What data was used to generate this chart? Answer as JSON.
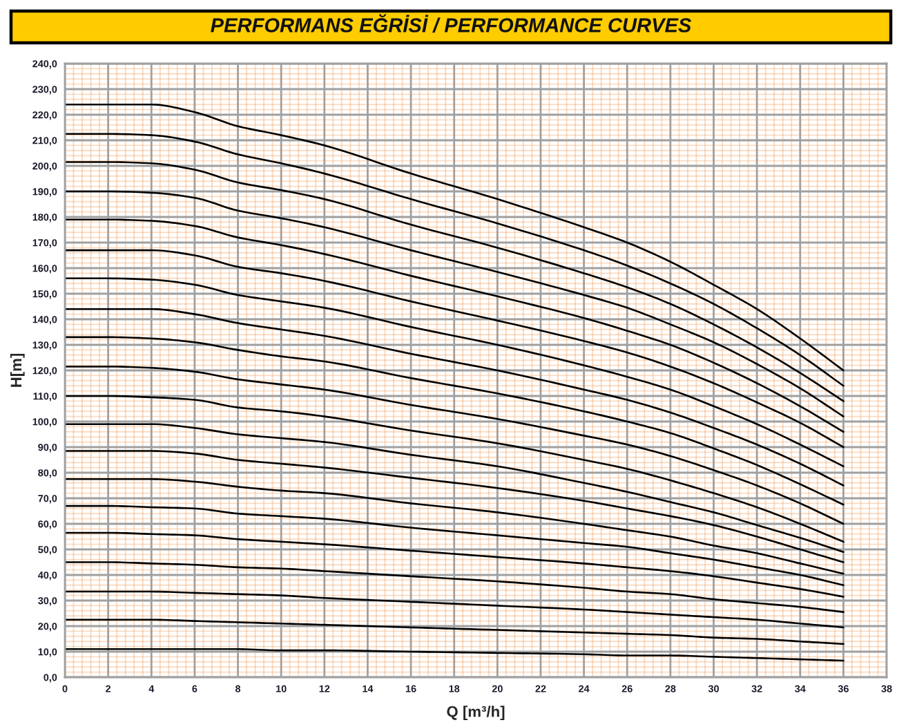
{
  "chart_data": {
    "type": "line",
    "title": "PERFORMANS EĞRİSİ / PERFORMANCE CURVES",
    "xlabel": "Q [m³/h]",
    "ylabel": "H[m]",
    "x": [
      0,
      2,
      4,
      6,
      8,
      10,
      12,
      16,
      20,
      24,
      26,
      28,
      30,
      32,
      34,
      36
    ],
    "xlim": [
      0,
      38
    ],
    "ylim": [
      0,
      240
    ],
    "xticks": [
      0,
      {
        "value": 0.4,
        "label": null
      },
      {
        "value": 0.8,
        "label": null
      },
      {
        "value": 1.2,
        "label": null
      },
      {
        "value": 1.6,
        "label": null
      },
      2,
      {
        "value": 2.4,
        "label": null
      },
      {
        "value": 2.8,
        "label": null
      },
      {
        "value": 3.2,
        "label": null
      },
      {
        "value": 3.6,
        "label": null
      },
      4,
      {
        "value": 4.4,
        "label": null
      },
      {
        "value": 4.8,
        "label": null
      },
      {
        "value": 5.2,
        "label": null
      },
      {
        "value": 5.6,
        "label": null
      },
      6,
      {
        "value": 6.4,
        "label": null
      },
      {
        "value": 6.8,
        "label": null
      },
      {
        "value": 7.2,
        "label": null
      },
      {
        "value": 7.6,
        "label": null
      },
      8,
      {
        "value": 8.4,
        "label": null
      },
      {
        "value": 8.8,
        "label": null
      },
      {
        "value": 9.2,
        "label": null
      },
      {
        "value": 9.6,
        "label": null
      },
      10,
      {
        "value": 10.4,
        "label": null
      },
      {
        "value": 10.8,
        "label": null
      },
      {
        "value": 11.2,
        "label": null
      },
      {
        "value": 11.6,
        "label": null
      },
      12,
      {
        "value": 12.4,
        "label": null
      },
      {
        "value": 12.8,
        "label": null
      },
      {
        "value": 13.2,
        "label": null
      },
      {
        "value": 13.6,
        "label": null
      },
      14,
      {
        "value": 14.4,
        "label": null
      },
      {
        "value": 14.8,
        "label": null
      },
      {
        "value": 15.2,
        "label": null
      },
      {
        "value": 15.6,
        "label": null
      },
      16,
      {
        "value": 16.4,
        "label": null
      },
      {
        "value": 16.8,
        "label": null
      },
      {
        "value": 17.2,
        "label": null
      },
      {
        "value": 17.6,
        "label": null
      },
      18,
      {
        "value": 18.4,
        "label": null
      },
      {
        "value": 18.8,
        "label": null
      },
      {
        "value": 19.2,
        "label": null
      },
      {
        "value": 19.6,
        "label": null
      },
      20,
      {
        "value": 20.4,
        "label": null
      },
      {
        "value": 20.8,
        "label": null
      },
      {
        "value": 21.2,
        "label": null
      },
      {
        "value": 21.6,
        "label": null
      },
      22,
      {
        "value": 22.4,
        "label": null
      },
      {
        "value": 22.8,
        "label": null
      },
      {
        "value": 23.2,
        "label": null
      },
      {
        "value": 23.6,
        "label": null
      },
      24,
      {
        "value": 24.4,
        "label": null
      },
      {
        "value": 24.8,
        "label": null
      },
      {
        "value": 25.2,
        "label": null
      },
      {
        "value": 25.6,
        "label": null
      },
      26,
      {
        "value": 26.4,
        "label": null
      },
      {
        "value": 26.8,
        "label": null
      },
      {
        "value": 27.2,
        "label": null
      },
      {
        "value": 27.6,
        "label": null
      },
      28,
      {
        "value": 28.4,
        "label": null
      },
      {
        "value": 28.8,
        "label": null
      },
      {
        "value": 29.2,
        "label": null
      },
      {
        "value": 29.6,
        "label": null
      },
      30,
      {
        "value": 30.4,
        "label": null
      },
      {
        "value": 30.8,
        "label": null
      },
      {
        "value": 31.2,
        "label": null
      },
      {
        "value": 31.6,
        "label": null
      },
      32,
      {
        "value": 32.4,
        "label": null
      },
      {
        "value": 32.8,
        "label": null
      },
      {
        "value": 33.2,
        "label": null
      },
      {
        "value": 33.6,
        "label": null
      },
      34,
      {
        "value": 34.4,
        "label": null
      },
      {
        "value": 34.8,
        "label": null
      },
      {
        "value": 35.2,
        "label": null
      },
      {
        "value": 35.6,
        "label": null
      },
      36,
      {
        "value": 36.4,
        "label": null
      },
      {
        "value": 36.8,
        "label": null
      },
      {
        "value": 37.2,
        "label": null
      },
      {
        "value": 37.6,
        "label": null
      },
      38
    ],
    "yticks": [
      {
        "value": 0,
        "label": "0,0"
      },
      {
        "value": 2,
        "label": null
      },
      {
        "value": 4,
        "label": null
      },
      {
        "value": 6,
        "label": null
      },
      {
        "value": 8,
        "label": null
      },
      {
        "value": 10,
        "label": "10,0"
      },
      {
        "value": 12,
        "label": null
      },
      {
        "value": 14,
        "label": null
      },
      {
        "value": 16,
        "label": null
      },
      {
        "value": 18,
        "label": null
      },
      {
        "value": 20,
        "label": "20,0"
      },
      {
        "value": 22,
        "label": null
      },
      {
        "value": 24,
        "label": null
      },
      {
        "value": 26,
        "label": null
      },
      {
        "value": 28,
        "label": null
      },
      {
        "value": 30,
        "label": "30,0"
      },
      {
        "value": 32,
        "label": null
      },
      {
        "value": 34,
        "label": null
      },
      {
        "value": 36,
        "label": null
      },
      {
        "value": 38,
        "label": null
      },
      {
        "value": 40,
        "label": "40,0"
      },
      {
        "value": 42,
        "label": null
      },
      {
        "value": 44,
        "label": null
      },
      {
        "value": 46,
        "label": null
      },
      {
        "value": 48,
        "label": null
      },
      {
        "value": 50,
        "label": "50,0"
      },
      {
        "value": 52,
        "label": null
      },
      {
        "value": 54,
        "label": null
      },
      {
        "value": 56,
        "label": null
      },
      {
        "value": 58,
        "label": null
      },
      {
        "value": 60,
        "label": "60,0"
      },
      {
        "value": 62,
        "label": null
      },
      {
        "value": 64,
        "label": null
      },
      {
        "value": 66,
        "label": null
      },
      {
        "value": 68,
        "label": null
      },
      {
        "value": 70,
        "label": "70,0"
      },
      {
        "value": 72,
        "label": null
      },
      {
        "value": 74,
        "label": null
      },
      {
        "value": 76,
        "label": null
      },
      {
        "value": 78,
        "label": null
      },
      {
        "value": 80,
        "label": "80,0"
      },
      {
        "value": 82,
        "label": null
      },
      {
        "value": 84,
        "label": null
      },
      {
        "value": 86,
        "label": null
      },
      {
        "value": 88,
        "label": null
      },
      {
        "value": 90,
        "label": "90,0"
      },
      {
        "value": 92,
        "label": null
      },
      {
        "value": 94,
        "label": null
      },
      {
        "value": 96,
        "label": null
      },
      {
        "value": 98,
        "label": null
      },
      {
        "value": 100,
        "label": "100,0"
      },
      {
        "value": 102,
        "label": null
      },
      {
        "value": 104,
        "label": null
      },
      {
        "value": 106,
        "label": null
      },
      {
        "value": 108,
        "label": null
      },
      {
        "value": 110,
        "label": "110,0"
      },
      {
        "value": 112,
        "label": null
      },
      {
        "value": 114,
        "label": null
      },
      {
        "value": 116,
        "label": null
      },
      {
        "value": 118,
        "label": null
      },
      {
        "value": 120,
        "label": "120,0"
      },
      {
        "value": 122,
        "label": null
      },
      {
        "value": 124,
        "label": null
      },
      {
        "value": 126,
        "label": null
      },
      {
        "value": 128,
        "label": null
      },
      {
        "value": 130,
        "label": "130,0"
      },
      {
        "value": 132,
        "label": null
      },
      {
        "value": 134,
        "label": null
      },
      {
        "value": 136,
        "label": null
      },
      {
        "value": 138,
        "label": null
      },
      {
        "value": 140,
        "label": "140,0"
      },
      {
        "value": 142,
        "label": null
      },
      {
        "value": 144,
        "label": null
      },
      {
        "value": 146,
        "label": null
      },
      {
        "value": 148,
        "label": null
      },
      {
        "value": 150,
        "label": "150,0"
      },
      {
        "value": 152,
        "label": null
      },
      {
        "value": 154,
        "label": null
      },
      {
        "value": 156,
        "label": null
      },
      {
        "value": 158,
        "label": null
      },
      {
        "value": 160,
        "label": "160,0"
      },
      {
        "value": 162,
        "label": null
      },
      {
        "value": 164,
        "label": null
      },
      {
        "value": 166,
        "label": null
      },
      {
        "value": 168,
        "label": null
      },
      {
        "value": 170,
        "label": "170,0"
      },
      {
        "value": 172,
        "label": null
      },
      {
        "value": 174,
        "label": null
      },
      {
        "value": 176,
        "label": null
      },
      {
        "value": 178,
        "label": null
      },
      {
        "value": 180,
        "label": "180,0"
      },
      {
        "value": 182,
        "label": null
      },
      {
        "value": 184,
        "label": null
      },
      {
        "value": 186,
        "label": null
      },
      {
        "value": 188,
        "label": null
      },
      {
        "value": 190,
        "label": "190,0"
      },
      {
        "value": 192,
        "label": null
      },
      {
        "value": 194,
        "label": null
      },
      {
        "value": 196,
        "label": null
      },
      {
        "value": 198,
        "label": null
      },
      {
        "value": 200,
        "label": "200,0"
      },
      {
        "value": 202,
        "label": null
      },
      {
        "value": 204,
        "label": null
      },
      {
        "value": 206,
        "label": null
      },
      {
        "value": 208,
        "label": null
      },
      {
        "value": 210,
        "label": "210,0"
      },
      {
        "value": 212,
        "label": null
      },
      {
        "value": 214,
        "label": null
      },
      {
        "value": 216,
        "label": null
      },
      {
        "value": 218,
        "label": null
      },
      {
        "value": 220,
        "label": "220,0"
      },
      {
        "value": 222,
        "label": null
      },
      {
        "value": 224,
        "label": null
      },
      {
        "value": 226,
        "label": null
      },
      {
        "value": 228,
        "label": null
      },
      {
        "value": 230,
        "label": "230,0"
      },
      {
        "value": 232,
        "label": null
      },
      {
        "value": 234,
        "label": null
      },
      {
        "value": 236,
        "label": null
      },
      {
        "value": 238,
        "label": null
      },
      {
        "value": 240,
        "label": "240,0"
      }
    ],
    "grid": true,
    "line_style": "solid",
    "series": [
      {
        "color": "#000000",
        "values": [
          11,
          11,
          11,
          11,
          11,
          10.5,
          10.5,
          10,
          9.5,
          9,
          8.5,
          8.5,
          8,
          7.5,
          7,
          6.5
        ]
      },
      {
        "color": "#000000",
        "values": [
          22.5,
          22.5,
          22.5,
          22,
          21.5,
          21,
          20.5,
          19.5,
          18.5,
          17.5,
          17,
          16.5,
          15.5,
          15,
          14,
          13
        ]
      },
      {
        "color": "#000000",
        "values": [
          33.5,
          33.5,
          33.5,
          33,
          32.5,
          32,
          31,
          29.5,
          28,
          26.5,
          25.5,
          24.5,
          23.5,
          22.5,
          21,
          19.5
        ]
      },
      {
        "color": "#000000",
        "values": [
          45,
          45,
          44.5,
          44,
          43,
          42.5,
          41.5,
          39.5,
          37.5,
          35,
          33.5,
          32.5,
          30.5,
          29,
          27.5,
          25.5
        ]
      },
      {
        "color": "#000000",
        "values": [
          56.5,
          56.5,
          56,
          55.5,
          54,
          53,
          52,
          49.5,
          47,
          44.5,
          43,
          41.5,
          39.5,
          37,
          34.5,
          31.5
        ]
      },
      {
        "color": "#000000",
        "values": [
          67,
          67,
          66.5,
          66,
          64,
          63,
          62,
          58.5,
          55.5,
          52.5,
          51,
          48.5,
          46,
          43,
          40,
          36
        ]
      },
      {
        "color": "#000000",
        "values": [
          77.5,
          77.5,
          77.5,
          76.5,
          74.5,
          73,
          72,
          68,
          64.5,
          60,
          57.5,
          55,
          51.5,
          48.5,
          44.5,
          40.5
        ]
      },
      {
        "color": "#000000",
        "values": [
          88.5,
          88.5,
          88.5,
          87.5,
          85,
          83.5,
          82,
          78,
          74,
          69,
          66,
          63,
          59.5,
          55,
          50,
          45
        ]
      },
      {
        "color": "#000000",
        "values": [
          99,
          99,
          99,
          97.5,
          95,
          93.5,
          92,
          87,
          82.5,
          76,
          72.5,
          68.5,
          64.5,
          59.5,
          54.5,
          49
        ]
      },
      {
        "color": "#000000",
        "values": [
          110,
          110,
          109.5,
          108.5,
          105.5,
          104,
          102,
          96.5,
          91.5,
          85,
          81.5,
          77,
          72,
          66.5,
          60,
          53
        ]
      },
      {
        "color": "#000000",
        "values": [
          121.5,
          121.5,
          121,
          119.5,
          116.5,
          114.5,
          112.5,
          106.5,
          101,
          94.5,
          91,
          86.5,
          81,
          75,
          68,
          60
        ]
      },
      {
        "color": "#000000",
        "values": [
          133,
          133,
          132.5,
          131,
          128,
          125.5,
          123.5,
          117,
          111,
          104,
          100,
          95.5,
          89.5,
          83,
          75.5,
          67.5
        ]
      },
      {
        "color": "#000000",
        "values": [
          144,
          144,
          144,
          142,
          138.5,
          136,
          133.5,
          126.5,
          120,
          112.5,
          108.5,
          103.5,
          97.5,
          91,
          83.5,
          75
        ]
      },
      {
        "color": "#000000",
        "values": [
          156,
          156,
          155.5,
          153.5,
          149.5,
          147,
          144.5,
          137,
          130,
          122,
          117.5,
          112.5,
          106,
          99,
          91,
          82.5
        ]
      },
      {
        "color": "#000000",
        "values": [
          167,
          167,
          167,
          165,
          160.5,
          158,
          155,
          147,
          139.5,
          131.5,
          127,
          121.5,
          115,
          107.5,
          99.5,
          90
        ]
      },
      {
        "color": "#000000",
        "values": [
          179,
          179,
          178.5,
          176.5,
          172,
          169,
          165.5,
          157,
          149,
          140.5,
          135.5,
          130,
          123,
          115,
          106,
          96
        ]
      },
      {
        "color": "#000000",
        "values": [
          190,
          190,
          189.5,
          187.5,
          182.5,
          179.5,
          176,
          167,
          158.5,
          149.5,
          144.5,
          138,
          131,
          122.5,
          113,
          102
        ]
      },
      {
        "color": "#000000",
        "values": [
          201.5,
          201.5,
          201,
          198.5,
          193.5,
          190.5,
          187,
          177,
          168,
          158,
          152.5,
          146,
          138,
          129,
          119,
          108
        ]
      },
      {
        "color": "#000000",
        "values": [
          212.5,
          212.5,
          212,
          209.5,
          204.5,
          201,
          197,
          187,
          177.5,
          167,
          161,
          154,
          146,
          136.5,
          126,
          114
        ]
      },
      {
        "color": "#000000",
        "values": [
          224,
          224,
          224,
          221,
          215.5,
          212,
          208,
          197,
          187,
          176,
          170,
          162.5,
          153.5,
          144,
          132.5,
          120
        ]
      }
    ]
  }
}
